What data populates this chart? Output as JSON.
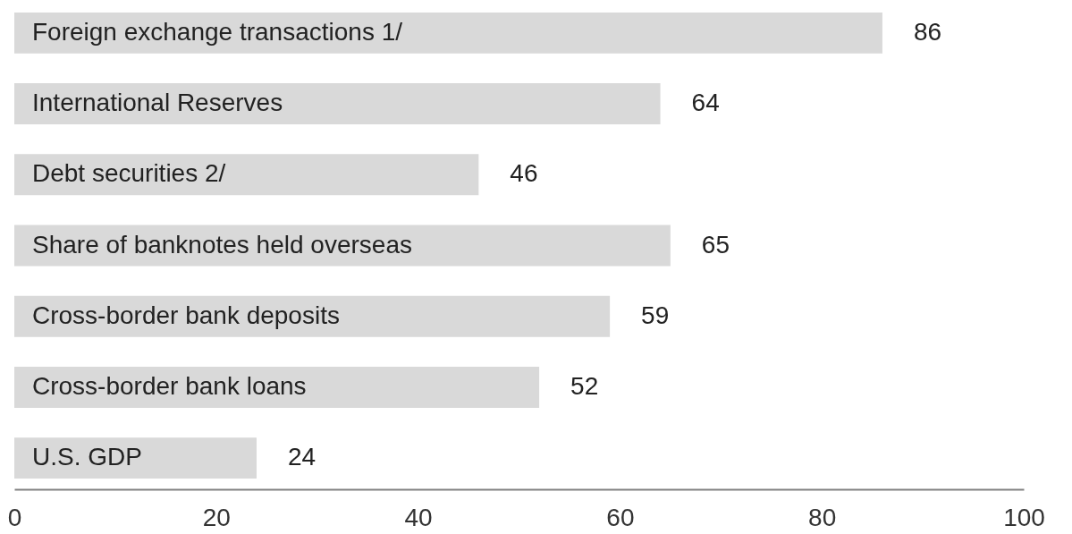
{
  "chart_data": {
    "type": "bar",
    "orientation": "horizontal",
    "categories": [
      "Foreign exchange transactions 1/",
      "International Reserves",
      "Debt securities 2/",
      "Share of banknotes held overseas",
      "Cross-border bank deposits",
      "Cross-border bank loans",
      "U.S. GDP"
    ],
    "values": [
      86,
      64,
      46,
      65,
      59,
      52,
      24
    ],
    "color": "#d9d9d9",
    "xlim": [
      0,
      100
    ],
    "xticks": [
      0,
      20,
      40,
      60,
      80,
      100
    ],
    "data_labels": true
  }
}
